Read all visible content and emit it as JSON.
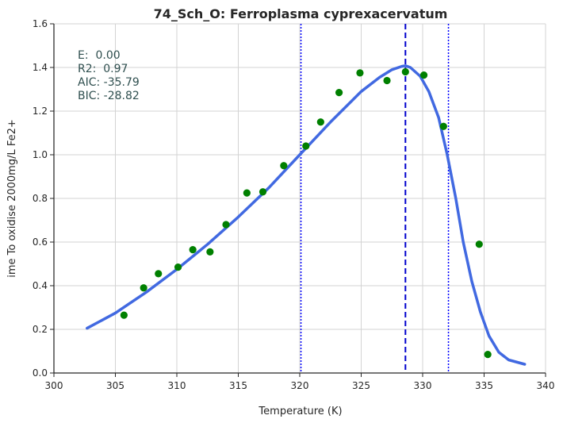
{
  "chart_data": {
    "type": "scatter",
    "title": "74_Sch_O: Ferroplasma cyprexacervatum",
    "xlabel": "Temperature (K)",
    "ylabel": "ime To oxidise 2000mg/L Fe2+",
    "xlim": [
      300,
      340
    ],
    "ylim": [
      0,
      1.6
    ],
    "xticks": [
      300,
      305,
      310,
      315,
      320,
      325,
      330,
      335,
      340
    ],
    "yticks": [
      0.0,
      0.2,
      0.4,
      0.6,
      0.8,
      1.0,
      1.2,
      1.4,
      1.6
    ],
    "grid": true,
    "points": {
      "color": "#008000",
      "x": [
        305.7,
        307.3,
        308.5,
        310.1,
        311.3,
        312.7,
        314.0,
        315.7,
        317.0,
        318.7,
        320.5,
        321.7,
        323.2,
        324.9,
        327.1,
        328.6,
        330.1,
        331.7,
        334.6,
        335.3
      ],
      "y": [
        0.265,
        0.39,
        0.455,
        0.485,
        0.565,
        0.555,
        0.68,
        0.825,
        0.83,
        0.95,
        1.04,
        1.15,
        1.285,
        1.375,
        1.34,
        1.38,
        1.365,
        1.13,
        0.59,
        0.085
      ]
    },
    "fit_curve": {
      "color": "#4169e1",
      "x": [
        302.7,
        305,
        307.5,
        310,
        312.5,
        315,
        317.5,
        320,
        322.5,
        325,
        326.5,
        327.5,
        328.3,
        328.6,
        329.0,
        329.8,
        330.5,
        331.3,
        332.0,
        332.7,
        333.3,
        334.0,
        334.7,
        335.4,
        336.2,
        337.0,
        338.3
      ],
      "y": [
        0.205,
        0.275,
        0.37,
        0.475,
        0.59,
        0.715,
        0.85,
        1.0,
        1.15,
        1.29,
        1.355,
        1.39,
        1.405,
        1.408,
        1.4,
        1.36,
        1.29,
        1.17,
        1.0,
        0.8,
        0.6,
        0.42,
        0.28,
        0.17,
        0.095,
        0.06,
        0.04
      ]
    },
    "peak_line": {
      "x": 328.6,
      "color": "#0000cd"
    },
    "bound_lines": {
      "x": [
        320.1,
        332.1
      ],
      "color": "#0000ff"
    },
    "stats": [
      "E:  0.00",
      "R2:  0.97",
      "AIC: -35.79",
      "BIC: -28.82"
    ]
  }
}
